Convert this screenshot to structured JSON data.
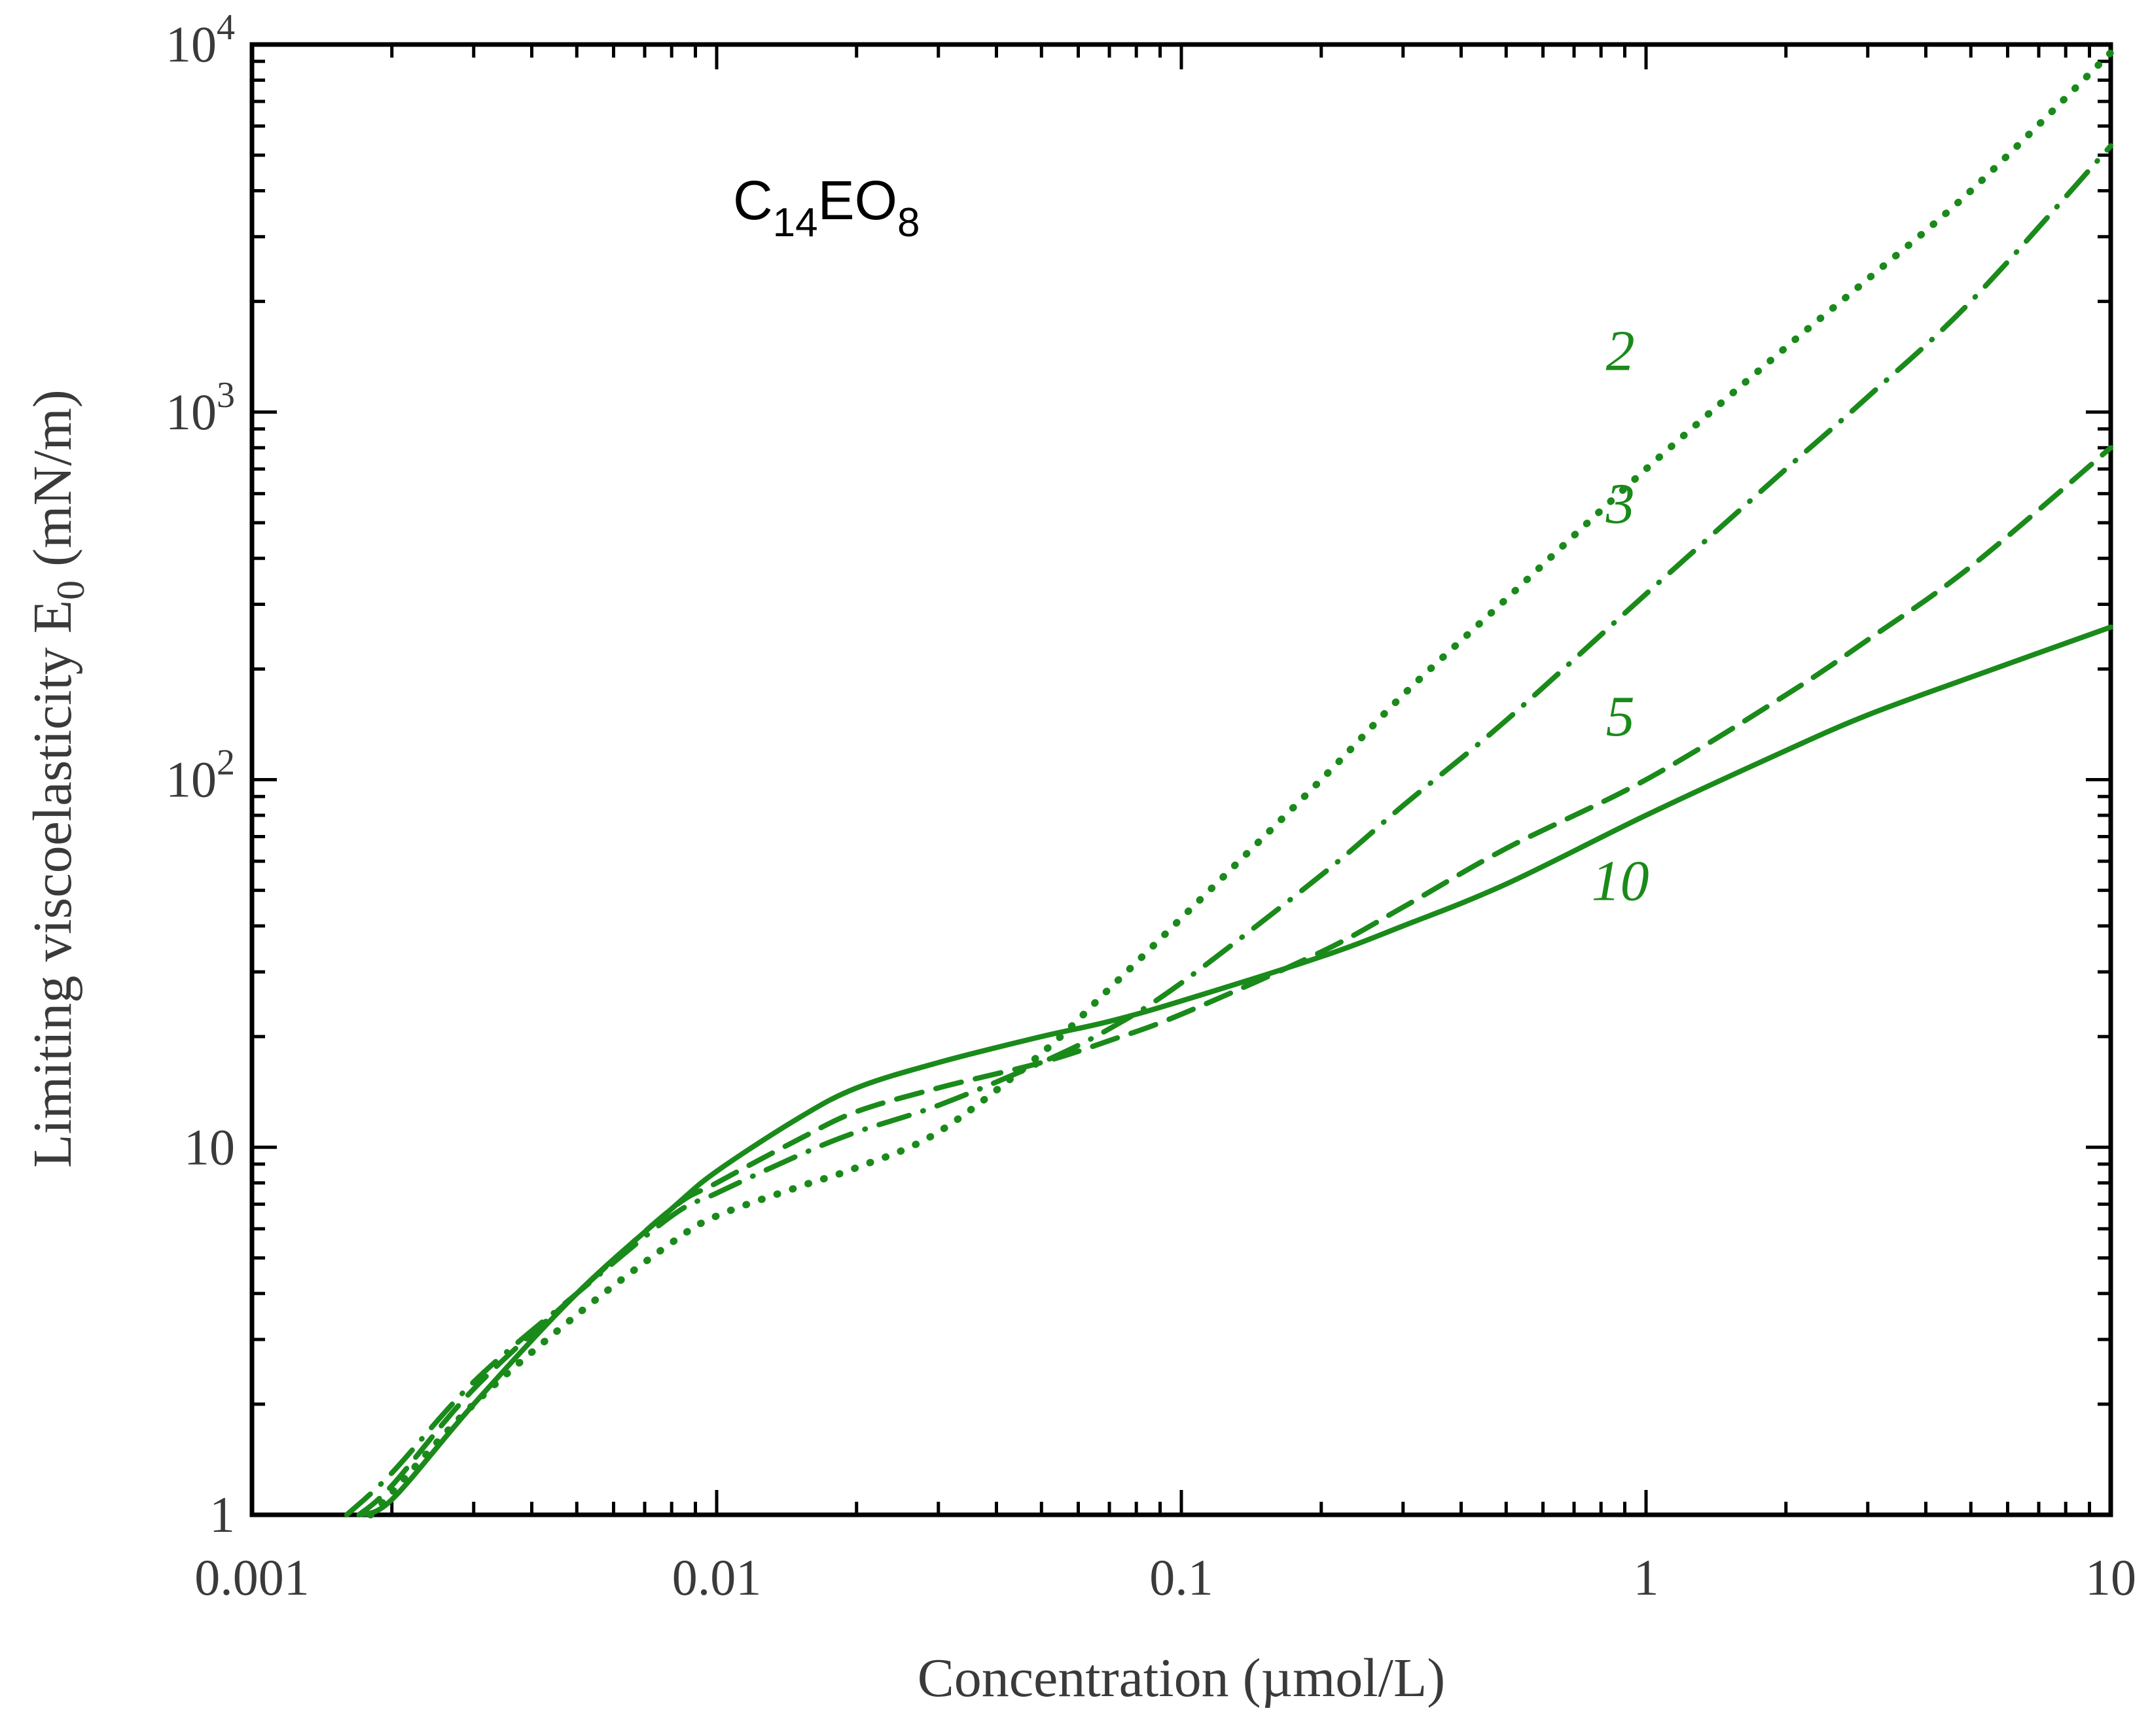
{
  "chart_data": {
    "type": "line",
    "title": "",
    "annotation": {
      "base": "C",
      "sub1": "14",
      "mid": "EO",
      "sub2": "8"
    },
    "xlabel": "Concentration (µmol/L)",
    "ylabel": {
      "main": "Limiting viscoelasticity E",
      "sub": "0",
      "tail": " (mN/m)"
    },
    "xscale": "log",
    "yscale": "log",
    "xlim": [
      0.001,
      10
    ],
    "ylim": [
      1,
      10000
    ],
    "grid": false,
    "legend": "inline curve labels",
    "x_ticks": [
      {
        "value": 0.001,
        "label": "0.001"
      },
      {
        "value": 0.01,
        "label": "0.01"
      },
      {
        "value": 0.1,
        "label": "0.1"
      },
      {
        "value": 1,
        "label": "1"
      },
      {
        "value": 10,
        "label": "10"
      }
    ],
    "y_ticks": [
      {
        "value": 1,
        "base": "1",
        "exp": ""
      },
      {
        "value": 10,
        "base": "10",
        "exp": ""
      },
      {
        "value": 100,
        "base": "10",
        "exp": "2"
      },
      {
        "value": 1000,
        "base": "10",
        "exp": "3"
      },
      {
        "value": 10000,
        "base": "10",
        "exp": "4"
      }
    ],
    "colors": {
      "series": "#1a8a1a",
      "axis": "#000000",
      "text": "#3a3a3a"
    },
    "series": [
      {
        "name": "2",
        "style": "dotted",
        "label_at": [
          0.88,
          1300
        ],
        "points": [
          [
            0.0018,
            1
          ],
          [
            0.002,
            1.15
          ],
          [
            0.003,
            2
          ],
          [
            0.005,
            3.5
          ],
          [
            0.008,
            5.5
          ],
          [
            0.01,
            6.5
          ],
          [
            0.015,
            7.8
          ],
          [
            0.02,
            8.8
          ],
          [
            0.03,
            11
          ],
          [
            0.05,
            18
          ],
          [
            0.07,
            27
          ],
          [
            0.1,
            42
          ],
          [
            0.2,
            100
          ],
          [
            0.3,
            170
          ],
          [
            0.5,
            310
          ],
          [
            1,
            700
          ],
          [
            2,
            1500
          ],
          [
            3,
            2300
          ],
          [
            5,
            4000
          ],
          [
            10,
            9500
          ]
        ]
      },
      {
        "name": "3",
        "style": "dashdot",
        "label_at": [
          0.88,
          500
        ],
        "points": [
          [
            0.0016,
            1
          ],
          [
            0.002,
            1.3
          ],
          [
            0.003,
            2.3
          ],
          [
            0.005,
            4
          ],
          [
            0.008,
            6.5
          ],
          [
            0.01,
            7.5
          ],
          [
            0.015,
            9.5
          ],
          [
            0.02,
            11
          ],
          [
            0.03,
            13
          ],
          [
            0.05,
            17
          ],
          [
            0.07,
            21
          ],
          [
            0.1,
            28
          ],
          [
            0.2,
            55
          ],
          [
            0.3,
            85
          ],
          [
            0.5,
            145
          ],
          [
            1,
            320
          ],
          [
            2,
            700
          ],
          [
            3,
            1100
          ],
          [
            5,
            2000
          ],
          [
            10,
            5300
          ]
        ]
      },
      {
        "name": "5",
        "style": "dashed",
        "label_at": [
          0.88,
          132
        ],
        "points": [
          [
            0.0017,
            1
          ],
          [
            0.002,
            1.2
          ],
          [
            0.003,
            2.2
          ],
          [
            0.005,
            4
          ],
          [
            0.008,
            6.8
          ],
          [
            0.01,
            8
          ],
          [
            0.015,
            10.5
          ],
          [
            0.02,
            12.5
          ],
          [
            0.03,
            14.5
          ],
          [
            0.05,
            17
          ],
          [
            0.07,
            19.5
          ],
          [
            0.1,
            23
          ],
          [
            0.2,
            34
          ],
          [
            0.3,
            45
          ],
          [
            0.5,
            65
          ],
          [
            1,
            100
          ],
          [
            2,
            170
          ],
          [
            3,
            240
          ],
          [
            5,
            380
          ],
          [
            10,
            800
          ]
        ]
      },
      {
        "name": "10",
        "style": "solid",
        "label_at": [
          0.88,
          47
        ],
        "points": [
          [
            0.0017,
            1
          ],
          [
            0.002,
            1.1
          ],
          [
            0.003,
            2
          ],
          [
            0.005,
            4
          ],
          [
            0.008,
            6.8
          ],
          [
            0.01,
            8.6
          ],
          [
            0.015,
            12
          ],
          [
            0.02,
            14.5
          ],
          [
            0.03,
            17
          ],
          [
            0.05,
            20
          ],
          [
            0.07,
            22
          ],
          [
            0.1,
            25
          ],
          [
            0.2,
            33
          ],
          [
            0.3,
            40
          ],
          [
            0.5,
            52
          ],
          [
            1,
            80
          ],
          [
            2,
            120
          ],
          [
            3,
            150
          ],
          [
            5,
            190
          ],
          [
            10,
            260
          ]
        ]
      }
    ]
  }
}
